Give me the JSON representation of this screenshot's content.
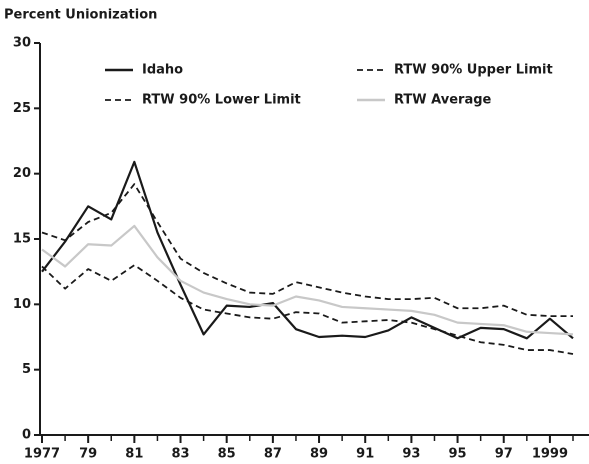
{
  "chart_data": {
    "type": "line",
    "title": "Percent Unionization",
    "x": [
      1977,
      1978,
      1979,
      1980,
      1981,
      1982,
      1983,
      1984,
      1985,
      1986,
      1987,
      1988,
      1989,
      1990,
      1991,
      1992,
      1993,
      1994,
      1995,
      1996,
      1997,
      1998,
      1999,
      2000
    ],
    "series": [
      {
        "name": "Idaho",
        "color": "#1a1a1a",
        "line_style": "solid",
        "values": [
          12.5,
          14.8,
          17.5,
          16.5,
          20.9,
          15.5,
          11.5,
          7.7,
          9.9,
          9.8,
          10.1,
          8.1,
          7.5,
          7.6,
          7.5,
          8.0,
          9.0,
          8.2,
          7.4,
          8.2,
          8.1,
          7.4,
          8.9,
          7.4
        ]
      },
      {
        "name": "RTW 90% Upper Limit",
        "color": "#1a1a1a",
        "line_style": "dashed",
        "values": [
          15.5,
          14.9,
          16.3,
          17.0,
          19.2,
          16.3,
          13.5,
          12.4,
          11.6,
          10.9,
          10.8,
          11.7,
          11.3,
          10.9,
          10.6,
          10.4,
          10.4,
          10.5,
          9.7,
          9.7,
          9.9,
          9.2,
          9.1,
          9.1
        ]
      },
      {
        "name": "RTW 90% Lower Limit",
        "color": "#1a1a1a",
        "line_style": "dashed",
        "values": [
          12.9,
          11.2,
          12.7,
          11.8,
          13.0,
          11.8,
          10.5,
          9.6,
          9.3,
          9.0,
          8.9,
          9.4,
          9.3,
          8.6,
          8.7,
          8.8,
          8.6,
          8.1,
          7.6,
          7.1,
          6.9,
          6.5,
          6.5,
          6.2
        ]
      },
      {
        "name": "RTW Average",
        "color": "#c8c8c8",
        "line_style": "solid",
        "values": [
          14.2,
          12.9,
          14.6,
          14.5,
          16.0,
          13.6,
          11.8,
          10.9,
          10.4,
          10.0,
          9.9,
          10.6,
          10.3,
          9.8,
          9.7,
          9.6,
          9.5,
          9.2,
          8.6,
          8.5,
          8.4,
          7.9,
          7.8,
          7.7
        ]
      }
    ],
    "xlim": [
      1977,
      2000
    ],
    "xticks": [
      1977,
      {
        "value": 1979,
        "label": "79"
      },
      {
        "value": 1981,
        "label": "81"
      },
      {
        "value": 1983,
        "label": "83"
      },
      {
        "value": 1985,
        "label": "85"
      },
      {
        "value": 1987,
        "label": "87"
      },
      {
        "value": 1989,
        "label": "89"
      },
      {
        "value": 1991,
        "label": "91"
      },
      {
        "value": 1993,
        "label": "93"
      },
      {
        "value": 1995,
        "label": "95"
      },
      {
        "value": 1997,
        "label": "97"
      },
      1999
    ],
    "ylim": [
      0,
      30
    ],
    "yticks": [
      0,
      5,
      10,
      15,
      20,
      25,
      30
    ],
    "grid": false
  }
}
